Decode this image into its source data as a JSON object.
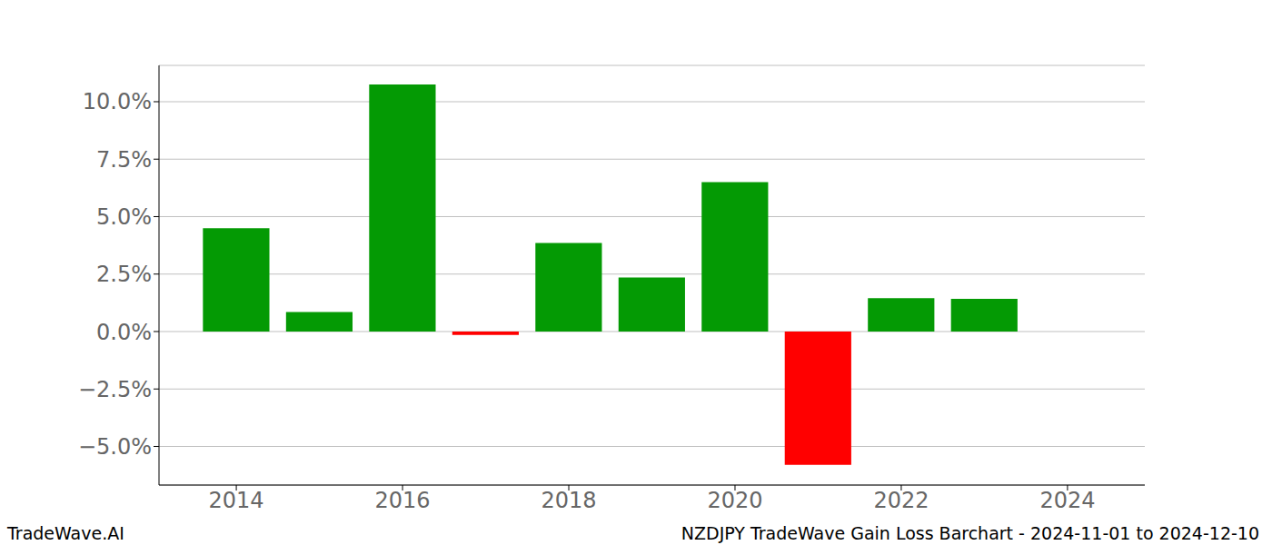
{
  "chart_data": {
    "type": "bar",
    "title": "NZDJPY TradeWave Gain Loss Barchart - 2024-11-01 to 2024-12-10",
    "source": "TradeWave.AI",
    "x": [
      2014,
      2015,
      2016,
      2017,
      2018,
      2019,
      2020,
      2021,
      2022,
      2023
    ],
    "values": [
      4.5,
      0.85,
      10.75,
      -0.15,
      3.85,
      2.35,
      6.5,
      -5.8,
      1.45,
      1.42
    ],
    "colors": [
      "#049a04",
      "#049a04",
      "#049a04",
      "#ff0000",
      "#049a04",
      "#049a04",
      "#049a04",
      "#ff0000",
      "#049a04",
      "#049a04"
    ],
    "xlim": [
      2013.07,
      2024.93
    ],
    "xticks": [
      2014,
      2016,
      2018,
      2020,
      2022,
      2024
    ],
    "ylim": [
      -6.68,
      11.58
    ],
    "yticks": [
      {
        "value": -5,
        "label": "−5.0%"
      },
      {
        "value": -2.5,
        "label": "−2.5%"
      },
      {
        "value": 0,
        "label": "0.0%"
      },
      {
        "value": 2.5,
        "label": "2.5%"
      },
      {
        "value": 5,
        "label": "5.0%"
      },
      {
        "value": 7.5,
        "label": "7.5%"
      },
      {
        "value": 10,
        "label": "10.0%"
      }
    ],
    "grid": true
  }
}
